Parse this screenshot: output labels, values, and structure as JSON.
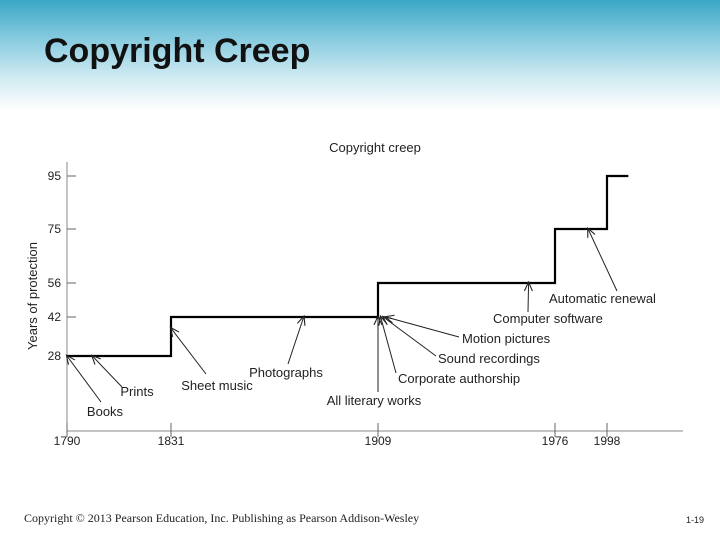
{
  "slide": {
    "title": "Copyright Creep",
    "footer_text": "Copyright © 2013 Pearson Education, Inc. Publishing as Pearson Addison-Wesley",
    "page_number": "1-19"
  },
  "chart_data": {
    "type": "line",
    "title": "Copyright creep",
    "xlabel": "",
    "ylabel": "Years of protection",
    "x_ticks": [
      1790,
      1831,
      1909,
      1976,
      1998
    ],
    "y_ticks": [
      28,
      42,
      56,
      75,
      95
    ],
    "xlim": [
      1790,
      2030
    ],
    "ylim": [
      0,
      100
    ],
    "grid": false,
    "line_color": "#000000",
    "series": [
      {
        "name": "",
        "step": true,
        "points": [
          {
            "x": 1790,
            "y": 28
          },
          {
            "x": 1831,
            "y": 28
          },
          {
            "x": 1831,
            "y": 42
          },
          {
            "x": 1909,
            "y": 42
          },
          {
            "x": 1909,
            "y": 56
          },
          {
            "x": 1976,
            "y": 56
          },
          {
            "x": 1976,
            "y": 75
          },
          {
            "x": 1998,
            "y": 75
          },
          {
            "x": 1998,
            "y": 95
          },
          {
            "x": 2007,
            "y": 95
          }
        ]
      }
    ],
    "annotations": [
      {
        "text": "Books",
        "point": {
          "x": 1790,
          "y": 28
        }
      },
      {
        "text": "Prints",
        "point": {
          "x": 1800,
          "y": 28
        }
      },
      {
        "text": "Sheet music",
        "point": {
          "x": 1831,
          "y": 38
        }
      },
      {
        "text": "Photographs",
        "point": {
          "x": 1881,
          "y": 42
        }
      },
      {
        "text": "All literary works",
        "point": {
          "x": 1909,
          "y": 42
        }
      },
      {
        "text": "Corporate authorship",
        "point": {
          "x": 1910,
          "y": 42
        }
      },
      {
        "text": "Sound recordings",
        "point": {
          "x": 1911,
          "y": 42
        }
      },
      {
        "text": "Motion pictures",
        "point": {
          "x": 1912,
          "y": 42
        }
      },
      {
        "text": "Computer software",
        "point": {
          "x": 1966,
          "y": 56
        }
      },
      {
        "text": "Automatic renewal",
        "point": {
          "x": 1990,
          "y": 75
        }
      }
    ]
  }
}
